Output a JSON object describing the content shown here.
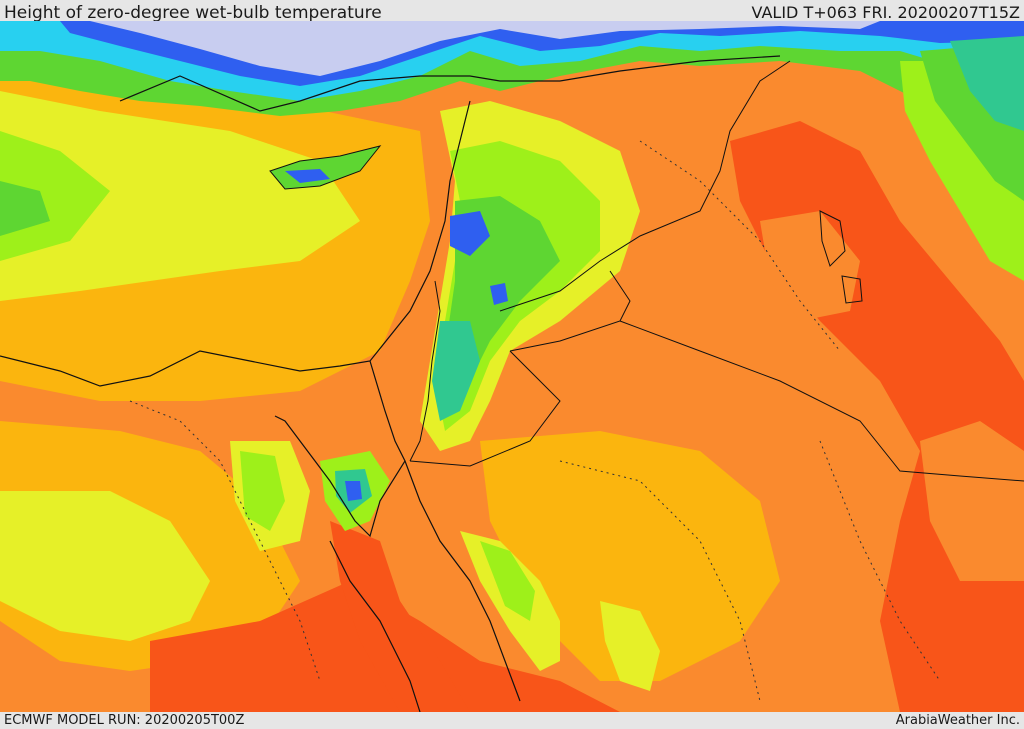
{
  "header": {
    "title": "Height of zero-degree wet-bulb temperature",
    "valid": "VALID T+063 FRI. 20200207T15Z"
  },
  "footer": {
    "model_run": "ECMWF MODEL RUN: 20200205T00Z",
    "credit": "ArabiaWeather Inc."
  },
  "palette": {
    "lavender": "#c8cdf0",
    "blue": "#2f5ff0",
    "cyan": "#28d0f0",
    "teal": "#30c890",
    "green": "#5ed632",
    "lime": "#9ef01a",
    "yellow": "#e6f028",
    "amber": "#fbb50e",
    "orange": "#fa8a2e",
    "red_orange": "#f85519",
    "border": "#111111"
  }
}
